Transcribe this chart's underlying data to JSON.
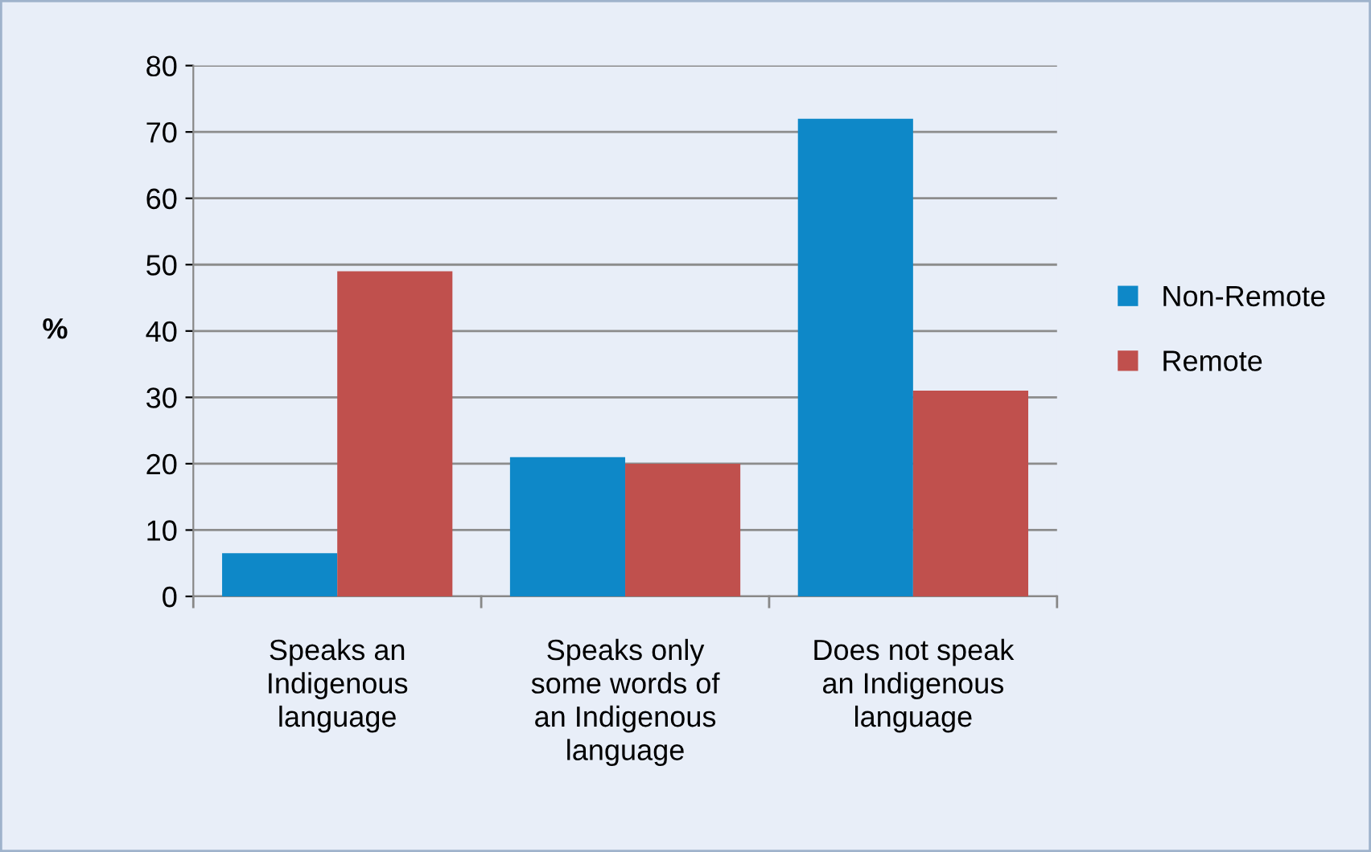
{
  "chart_data": {
    "type": "bar",
    "ylabel": "%",
    "categories": [
      "Speaks an\nIndigenous\nlanguage",
      "Speaks only\nsome words of\nan Indigenous\nlanguage",
      "Does not speak\nan Indigenous\nlanguage"
    ],
    "series": [
      {
        "name": "Non-Remote",
        "color": "#0e88c8",
        "values": [
          6.5,
          21,
          72
        ]
      },
      {
        "name": "Remote",
        "color": "#c0504d",
        "values": [
          49,
          20,
          31
        ]
      }
    ],
    "ylim": [
      0,
      80
    ],
    "yticks": [
      0,
      10,
      20,
      30,
      40,
      50,
      60,
      70,
      80
    ],
    "grid": "y",
    "legend": "right"
  }
}
